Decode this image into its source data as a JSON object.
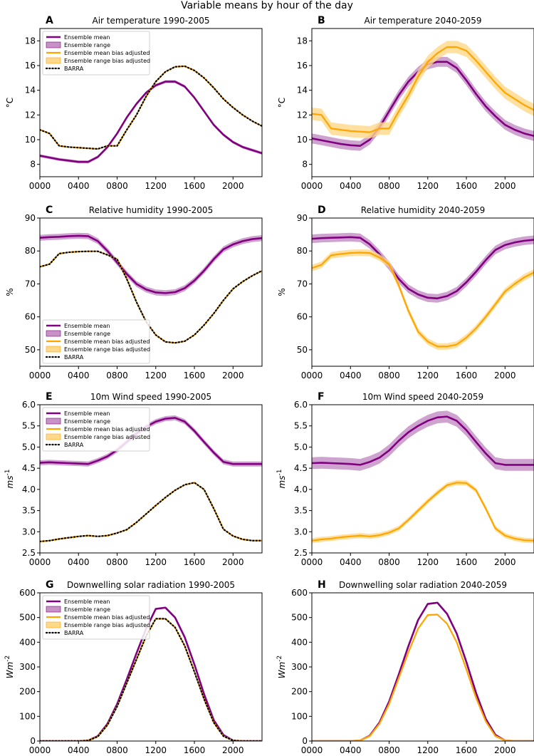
{
  "suptitle": "Variable means by hour of the day",
  "colors": {
    "ens": "#800080",
    "ensband": "#c793c7",
    "bias": "#ffa500",
    "biasband": "#ffd88a",
    "barra": "#000000"
  },
  "legend_labels": {
    "ens_mean": "Ensemble mean",
    "ens_range": "Ensemble range",
    "bias_mean": "Ensemble mean bias adjusted",
    "bias_range": "Ensemble range bias adjusted",
    "barra": "BARRA"
  },
  "chart_data": [
    {
      "id": "A",
      "type": "line",
      "title": "Air temperature 1990-2005",
      "ylabel": "°C",
      "x": [
        0,
        1,
        2,
        3,
        4,
        5,
        6,
        7,
        8,
        9,
        10,
        11,
        12,
        13,
        14,
        15,
        16,
        17,
        18,
        19,
        20,
        21,
        22,
        23
      ],
      "xticks": [
        0,
        4,
        8,
        12,
        16,
        20
      ],
      "xtick_labels": [
        "0000",
        "0400",
        "0800",
        "1200",
        "1600",
        "2000"
      ],
      "xlim": [
        0,
        23
      ],
      "ylim": [
        7,
        19
      ],
      "yticks": [
        8,
        10,
        12,
        14,
        16,
        18
      ],
      "legend": true,
      "legend_position": "top-left",
      "series": [
        {
          "name": "Ensemble mean",
          "key": "ens",
          "values": [
            8.7,
            8.55,
            8.4,
            8.3,
            8.2,
            8.2,
            8.6,
            9.4,
            10.5,
            11.8,
            12.9,
            13.8,
            14.4,
            14.7,
            14.7,
            14.3,
            13.4,
            12.3,
            11.2,
            10.4,
            9.8,
            9.4,
            9.15,
            8.9
          ],
          "band": 0.12
        },
        {
          "name": "Ensemble mean bias adjusted",
          "key": "bias",
          "values": [
            10.8,
            10.5,
            9.5,
            9.4,
            9.35,
            9.3,
            9.25,
            9.5,
            9.5,
            10.8,
            12.0,
            13.5,
            14.7,
            15.5,
            15.9,
            15.95,
            15.6,
            15.0,
            14.2,
            13.3,
            12.6,
            12.0,
            11.5,
            11.1
          ],
          "band": 0.05
        },
        {
          "name": "BARRA",
          "key": "barra",
          "values": [
            10.8,
            10.5,
            9.5,
            9.4,
            9.35,
            9.3,
            9.25,
            9.5,
            9.5,
            10.8,
            12.0,
            13.5,
            14.7,
            15.5,
            15.9,
            15.95,
            15.6,
            15.0,
            14.2,
            13.3,
            12.6,
            12.0,
            11.5,
            11.1
          ]
        }
      ]
    },
    {
      "id": "B",
      "type": "line",
      "title": "Air temperature 2040-2059",
      "ylabel": "°C",
      "x": [
        0,
        1,
        2,
        3,
        4,
        5,
        6,
        7,
        8,
        9,
        10,
        11,
        12,
        13,
        14,
        15,
        16,
        17,
        18,
        19,
        20,
        21,
        22,
        23
      ],
      "xticks": [
        0,
        4,
        8,
        12,
        16,
        20
      ],
      "xtick_labels": [
        "0000",
        "0400",
        "0800",
        "1200",
        "1600",
        "2000"
      ],
      "xlim": [
        0,
        23
      ],
      "ylim": [
        7,
        19
      ],
      "yticks": [
        8,
        10,
        12,
        14,
        16,
        18
      ],
      "legend": false,
      "series": [
        {
          "name": "Ensemble mean",
          "key": "ens",
          "values": [
            10.1,
            9.95,
            9.8,
            9.65,
            9.55,
            9.5,
            10.0,
            11.0,
            12.3,
            13.6,
            14.7,
            15.5,
            16.1,
            16.3,
            16.3,
            15.8,
            14.8,
            13.7,
            12.7,
            11.9,
            11.2,
            10.8,
            10.5,
            10.3
          ],
          "band": 0.4
        },
        {
          "name": "Ensemble mean bias adjusted",
          "key": "bias",
          "values": [
            12.1,
            12.0,
            10.9,
            10.8,
            10.7,
            10.65,
            10.6,
            10.9,
            10.9,
            12.3,
            13.6,
            15.1,
            16.3,
            17.0,
            17.5,
            17.5,
            17.2,
            16.4,
            15.5,
            14.6,
            13.8,
            13.3,
            12.8,
            12.4
          ],
          "band": 0.5
        }
      ]
    },
    {
      "id": "C",
      "type": "line",
      "title": "Relative humidity 1990-2005",
      "ylabel": "%",
      "x": [
        0,
        1,
        2,
        3,
        4,
        5,
        6,
        7,
        8,
        9,
        10,
        11,
        12,
        13,
        14,
        15,
        16,
        17,
        18,
        19,
        20,
        21,
        22,
        23
      ],
      "xticks": [
        0,
        4,
        8,
        12,
        16,
        20
      ],
      "xtick_labels": [
        "0000",
        "0400",
        "0800",
        "1200",
        "1600",
        "2000"
      ],
      "xlim": [
        0,
        23
      ],
      "ylim": [
        45,
        90
      ],
      "yticks": [
        50,
        60,
        70,
        80,
        90
      ],
      "legend": true,
      "legend_position": "bottom-left",
      "series": [
        {
          "name": "Ensemble mean",
          "key": "ens",
          "values": [
            84.0,
            84.2,
            84.3,
            84.5,
            84.6,
            84.5,
            83.0,
            80.0,
            76.5,
            73.0,
            70.0,
            68.3,
            67.4,
            67.2,
            67.5,
            68.7,
            71.0,
            74.0,
            77.5,
            80.5,
            82.0,
            83.0,
            83.6,
            83.9
          ],
          "band": 0.9
        },
        {
          "name": "Ensemble mean bias adjusted",
          "key": "bias",
          "values": [
            75.2,
            76.0,
            79.2,
            79.6,
            79.8,
            79.9,
            79.9,
            78.8,
            77.5,
            71.5,
            64.5,
            58.5,
            54.5,
            52.4,
            52.1,
            52.6,
            54.5,
            57.5,
            61.0,
            65.0,
            68.5,
            70.7,
            72.5,
            74.0
          ],
          "band": 0.1
        },
        {
          "name": "BARRA",
          "key": "barra",
          "values": [
            75.2,
            76.0,
            79.2,
            79.6,
            79.8,
            79.9,
            79.9,
            78.8,
            77.5,
            71.5,
            64.5,
            58.5,
            54.5,
            52.4,
            52.1,
            52.6,
            54.5,
            57.5,
            61.0,
            65.0,
            68.5,
            70.7,
            72.5,
            74.0
          ]
        }
      ]
    },
    {
      "id": "D",
      "type": "line",
      "title": "Relative humidity 2040-2059",
      "ylabel": "%",
      "x": [
        0,
        1,
        2,
        3,
        4,
        5,
        6,
        7,
        8,
        9,
        10,
        11,
        12,
        13,
        14,
        15,
        16,
        17,
        18,
        19,
        20,
        21,
        22,
        23
      ],
      "xticks": [
        0,
        4,
        8,
        12,
        16,
        20
      ],
      "xtick_labels": [
        "0000",
        "0400",
        "0800",
        "1200",
        "1600",
        "2000"
      ],
      "xlim": [
        0,
        23
      ],
      "ylim": [
        45,
        90
      ],
      "yticks": [
        50,
        60,
        70,
        80,
        90
      ],
      "legend": false,
      "series": [
        {
          "name": "Ensemble mean",
          "key": "ens",
          "values": [
            83.7,
            83.9,
            84.0,
            84.1,
            84.2,
            84.0,
            82.0,
            79.0,
            75.5,
            71.5,
            68.5,
            66.8,
            65.8,
            65.6,
            66.3,
            67.8,
            70.5,
            73.7,
            77.2,
            80.3,
            81.8,
            82.6,
            83.1,
            83.4
          ],
          "band": 1.3
        },
        {
          "name": "Ensemble mean bias adjusted",
          "key": "bias",
          "values": [
            74.8,
            75.8,
            78.7,
            79.1,
            79.4,
            79.5,
            79.4,
            78.0,
            76.0,
            69.5,
            61.8,
            55.5,
            52.5,
            51.0,
            51.0,
            51.6,
            53.7,
            56.5,
            60.0,
            63.8,
            67.7,
            70.0,
            72.0,
            73.5
          ],
          "band": 1.0
        }
      ]
    },
    {
      "id": "E",
      "type": "line",
      "title": "10m Wind speed 1990-2005",
      "ylabel": "ms^-1",
      "x": [
        0,
        1,
        2,
        3,
        4,
        5,
        6,
        7,
        8,
        9,
        10,
        11,
        12,
        13,
        14,
        15,
        16,
        17,
        18,
        19,
        20,
        21,
        22,
        23
      ],
      "xticks": [
        0,
        4,
        8,
        12,
        16,
        20
      ],
      "xtick_labels": [
        "0000",
        "0400",
        "0800",
        "1200",
        "1600",
        "2000"
      ],
      "xlim": [
        0,
        23
      ],
      "ylim": [
        2.5,
        6.0
      ],
      "yticks": [
        2.5,
        3.0,
        3.5,
        4.0,
        4.5,
        5.0,
        5.5,
        6.0
      ],
      "legend": true,
      "legend_position": "top-right",
      "series": [
        {
          "name": "Ensemble mean",
          "key": "ens",
          "values": [
            4.63,
            4.64,
            4.63,
            4.62,
            4.61,
            4.6,
            4.68,
            4.78,
            4.93,
            5.12,
            5.32,
            5.48,
            5.6,
            5.67,
            5.69,
            5.6,
            5.38,
            5.12,
            4.87,
            4.65,
            4.6,
            4.6,
            4.6,
            4.6
          ],
          "band": 0.06
        },
        {
          "name": "Ensemble mean bias adjusted",
          "key": "bias",
          "values": [
            2.77,
            2.79,
            2.83,
            2.86,
            2.89,
            2.91,
            2.89,
            2.91,
            2.97,
            3.05,
            3.22,
            3.42,
            3.62,
            3.81,
            3.98,
            4.11,
            4.16,
            4.0,
            3.55,
            3.06,
            2.9,
            2.82,
            2.79,
            2.79
          ],
          "band": 0.02
        },
        {
          "name": "BARRA",
          "key": "barra",
          "values": [
            2.77,
            2.79,
            2.83,
            2.86,
            2.89,
            2.91,
            2.89,
            2.91,
            2.97,
            3.05,
            3.22,
            3.42,
            3.62,
            3.81,
            3.98,
            4.11,
            4.16,
            4.0,
            3.55,
            3.06,
            2.9,
            2.82,
            2.79,
            2.79
          ]
        }
      ]
    },
    {
      "id": "F",
      "type": "line",
      "title": "10m Wind speed 2040-2059",
      "ylabel": "ms^-1",
      "x": [
        0,
        1,
        2,
        3,
        4,
        5,
        6,
        7,
        8,
        9,
        10,
        11,
        12,
        13,
        14,
        15,
        16,
        17,
        18,
        19,
        20,
        21,
        22,
        23
      ],
      "xticks": [
        0,
        4,
        8,
        12,
        16,
        20
      ],
      "xtick_labels": [
        "0000",
        "0400",
        "0800",
        "1200",
        "1600",
        "2000"
      ],
      "xlim": [
        0,
        23
      ],
      "ylim": [
        2.5,
        6.0
      ],
      "yticks": [
        2.5,
        3.0,
        3.5,
        4.0,
        4.5,
        5.0,
        5.5,
        6.0
      ],
      "legend": false,
      "series": [
        {
          "name": "Ensemble mean",
          "key": "ens",
          "values": [
            4.62,
            4.63,
            4.62,
            4.61,
            4.6,
            4.58,
            4.65,
            4.75,
            4.92,
            5.15,
            5.35,
            5.5,
            5.62,
            5.7,
            5.72,
            5.62,
            5.4,
            5.12,
            4.85,
            4.62,
            4.58,
            4.58,
            4.58,
            4.58
          ],
          "band": 0.14
        },
        {
          "name": "Ensemble mean bias adjusted",
          "key": "bias",
          "values": [
            2.79,
            2.82,
            2.84,
            2.87,
            2.89,
            2.91,
            2.89,
            2.92,
            2.98,
            3.08,
            3.28,
            3.5,
            3.72,
            3.92,
            4.1,
            4.16,
            4.15,
            3.98,
            3.55,
            3.08,
            2.91,
            2.84,
            2.8,
            2.79
          ],
          "band": 0.06
        }
      ]
    },
    {
      "id": "G",
      "type": "line",
      "title": "Downwelling solar radiation 1990-2005",
      "ylabel": "Wm^-2",
      "x": [
        0,
        1,
        2,
        3,
        4,
        5,
        6,
        7,
        8,
        9,
        10,
        11,
        12,
        13,
        14,
        15,
        16,
        17,
        18,
        19,
        20,
        21,
        22,
        23
      ],
      "xticks": [
        0,
        4,
        8,
        12,
        16,
        20
      ],
      "xtick_labels": [
        "0000",
        "0400",
        "0800",
        "1200",
        "1600",
        "2000"
      ],
      "xlim": [
        0,
        23
      ],
      "ylim": [
        0,
        600
      ],
      "yticks": [
        0,
        100,
        200,
        300,
        400,
        500,
        600
      ],
      "legend": true,
      "legend_position": "top-left",
      "series": [
        {
          "name": "Ensemble mean",
          "key": "ens",
          "values": [
            0,
            0,
            0,
            0,
            0,
            2,
            20,
            70,
            150,
            250,
            355,
            455,
            535,
            540,
            500,
            420,
            310,
            190,
            85,
            25,
            2,
            0,
            0,
            0
          ],
          "band": 3
        },
        {
          "name": "Ensemble mean bias adjusted",
          "key": "bias",
          "values": [
            0,
            0,
            0,
            0,
            0,
            2,
            18,
            65,
            140,
            235,
            330,
            425,
            495,
            495,
            460,
            385,
            280,
            170,
            75,
            20,
            2,
            0,
            0,
            0
          ],
          "band": 3
        },
        {
          "name": "BARRA",
          "key": "barra",
          "values": [
            0,
            0,
            0,
            0,
            0,
            2,
            18,
            65,
            140,
            235,
            330,
            425,
            495,
            495,
            460,
            385,
            280,
            170,
            75,
            20,
            2,
            0,
            0,
            0
          ]
        }
      ]
    },
    {
      "id": "H",
      "type": "line",
      "title": "Downwelling solar radiation 2040-2059",
      "ylabel": "Wm^-2",
      "x": [
        0,
        1,
        2,
        3,
        4,
        5,
        6,
        7,
        8,
        9,
        10,
        11,
        12,
        13,
        14,
        15,
        16,
        17,
        18,
        19,
        20,
        21,
        22,
        23
      ],
      "xticks": [
        0,
        4,
        8,
        12,
        16,
        20
      ],
      "xtick_labels": [
        "0000",
        "0400",
        "0800",
        "1200",
        "1600",
        "2000"
      ],
      "xlim": [
        0,
        23
      ],
      "ylim": [
        0,
        600
      ],
      "yticks": [
        0,
        100,
        200,
        300,
        400,
        500,
        600
      ],
      "legend": false,
      "series": [
        {
          "name": "Ensemble mean",
          "key": "ens",
          "values": [
            0,
            0,
            0,
            0,
            0,
            2,
            22,
            75,
            160,
            270,
            385,
            490,
            555,
            560,
            515,
            435,
            320,
            195,
            90,
            25,
            2,
            0,
            0,
            0
          ],
          "band": 4
        },
        {
          "name": "Ensemble mean bias adjusted",
          "key": "bias",
          "values": [
            0,
            0,
            0,
            0,
            0,
            2,
            20,
            70,
            150,
            255,
            360,
            455,
            510,
            512,
            475,
            400,
            290,
            175,
            80,
            20,
            2,
            0,
            0,
            0
          ],
          "band": 4
        }
      ]
    }
  ]
}
